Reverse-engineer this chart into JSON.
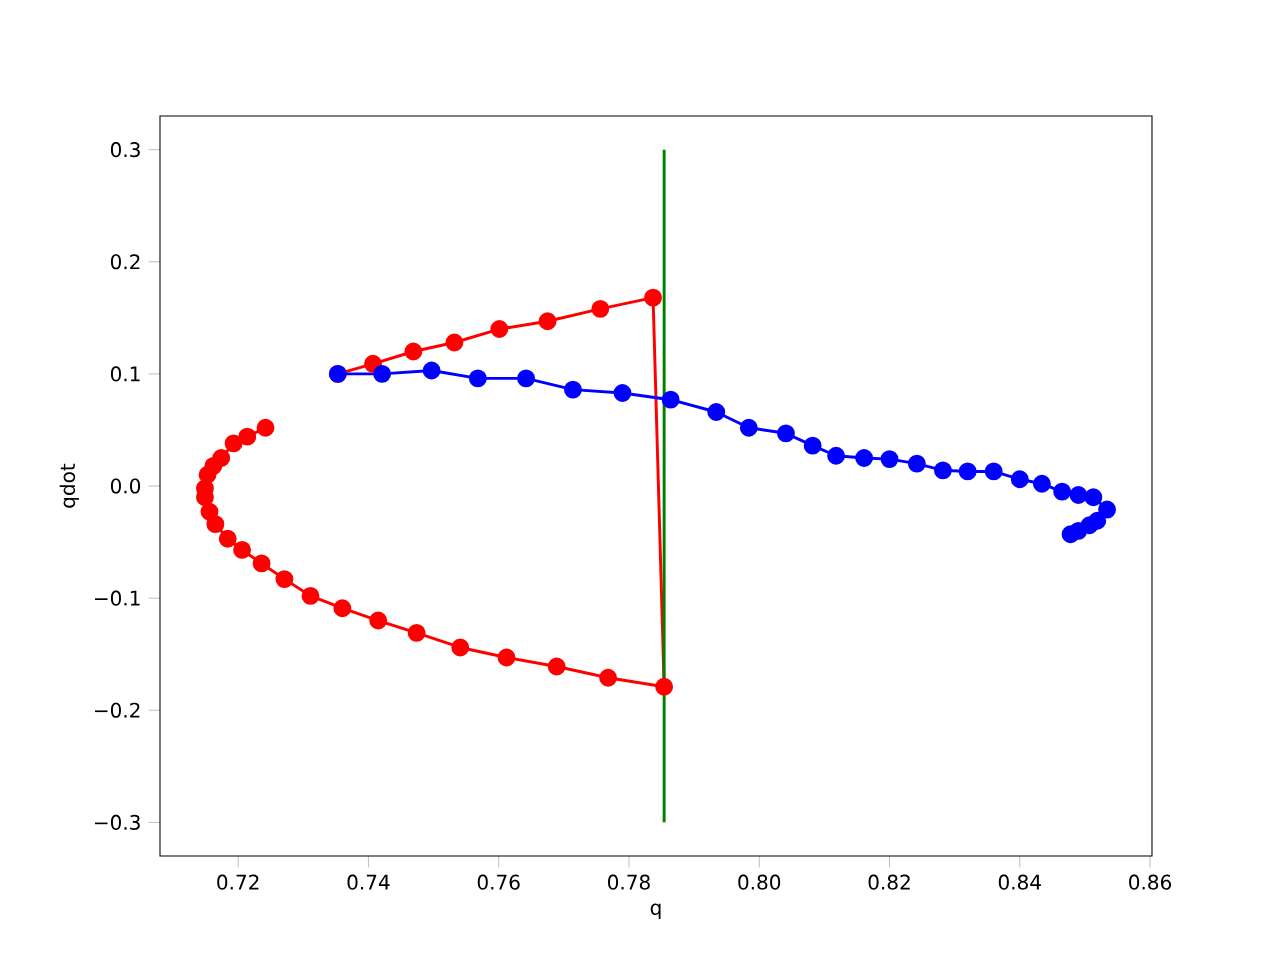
{
  "chart_data": {
    "type": "line",
    "xlabel": "q",
    "ylabel": "qdot",
    "marker": "circle",
    "line_style": "solid",
    "xlim": [
      0.708,
      0.8603
    ],
    "ylim": [
      -0.33,
      0.33
    ],
    "xticks": [
      0.72,
      0.74,
      0.76,
      0.78,
      {
        "value": 0.8,
        "label": "0.80"
      },
      0.82,
      0.84,
      0.86
    ],
    "yticks": [
      {
        "value": -0.3,
        "label": "−0.3"
      },
      {
        "value": -0.2,
        "label": "−0.2"
      },
      {
        "value": -0.1,
        "label": "−0.1"
      },
      {
        "value": 0,
        "label": "0.0"
      },
      0.1,
      0.2,
      0.3
    ],
    "series": [
      {
        "color": "#ff0000",
        "x": [
          0.7242,
          0.7214,
          0.7193,
          0.7174,
          0.7162,
          0.7153,
          0.7149,
          0.7149,
          0.7156,
          0.7165,
          0.7184,
          0.7206,
          0.7236,
          0.7271,
          0.7311,
          0.736,
          0.7415,
          0.7474,
          0.7541,
          0.7612,
          0.7689,
          0.7768,
          0.7854,
          0.7837,
          0.7756,
          0.7675,
          0.7601,
          0.7532,
          0.7469,
          0.7407,
          0.7353
        ],
        "values": [
          0.052,
          0.044,
          0.038,
          0.025,
          0.018,
          0.01,
          -0.002,
          -0.01,
          -0.023,
          -0.034,
          -0.047,
          -0.057,
          -0.069,
          -0.083,
          -0.098,
          -0.109,
          -0.12,
          -0.131,
          -0.144,
          -0.153,
          -0.161,
          -0.171,
          -0.179,
          0.168,
          0.158,
          0.147,
          0.14,
          0.128,
          0.12,
          0.109,
          0.1
        ]
      },
      {
        "color": "#0000ff",
        "x": [
          0.7353,
          0.7421,
          0.7497,
          0.7568,
          0.7642,
          0.7714,
          0.779,
          0.7864,
          0.7934,
          0.7984,
          0.8041,
          0.8082,
          0.8118,
          0.8161,
          0.82,
          0.8242,
          0.8282,
          0.832,
          0.836,
          0.84,
          0.8434,
          0.8465,
          0.849,
          0.8513,
          0.8534,
          0.8519,
          0.8507,
          0.849,
          0.8478
        ],
        "values": [
          0.1,
          0.1,
          0.103,
          0.096,
          0.096,
          0.086,
          0.083,
          0.077,
          0.066,
          0.052,
          0.047,
          0.036,
          0.027,
          0.025,
          0.024,
          0.02,
          0.014,
          0.013,
          0.013,
          0.006,
          0.002,
          -0.005,
          -0.008,
          -0.01,
          -0.021,
          -0.031,
          -0.035,
          -0.04,
          -0.043
        ]
      },
      {
        "color": "#008000",
        "marker": "none",
        "x": [
          0.7854,
          0.7854
        ],
        "values": [
          -0.3,
          0.3
        ]
      }
    ]
  }
}
